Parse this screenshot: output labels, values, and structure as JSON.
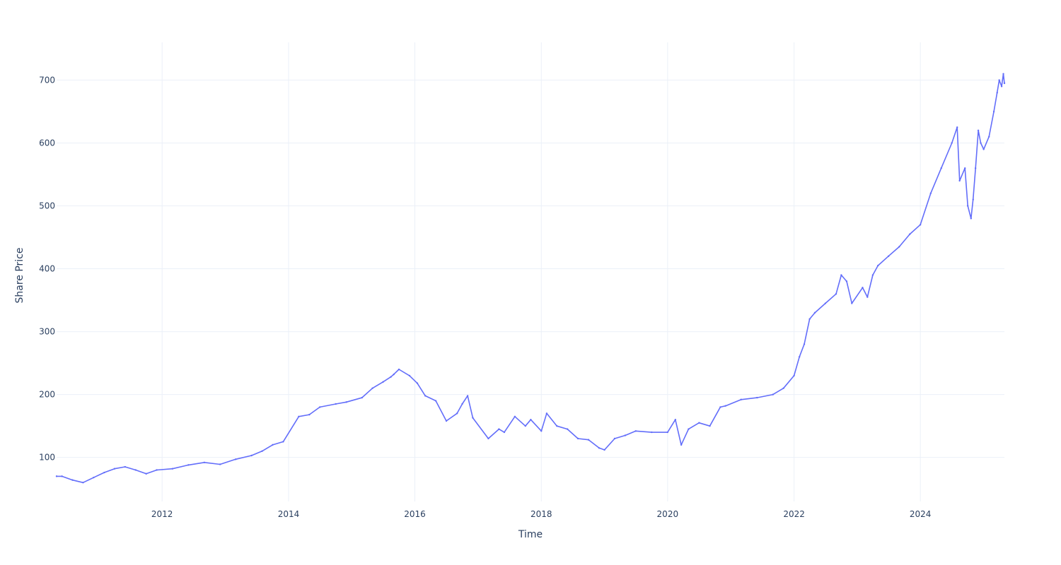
{
  "chart_data": {
    "type": "line",
    "title": "",
    "xlabel": "Time",
    "ylabel": "Share Price",
    "x_tick_labels": [
      "2012",
      "2014",
      "2016",
      "2018",
      "2020",
      "2022",
      "2024"
    ],
    "y_tick_labels": [
      "100",
      "200",
      "300",
      "400",
      "500",
      "600",
      "700"
    ],
    "y_ticks": [
      100,
      200,
      300,
      400,
      500,
      600,
      700
    ],
    "xlim": [
      "2010-05-01",
      "2025-05-01"
    ],
    "ylim": [
      30,
      760
    ],
    "grid": true,
    "legend": "none",
    "series": [
      {
        "color": "#636efa",
        "x": [
          "2010-05-01",
          "2010-06-01",
          "2010-08-01",
          "2010-10-01",
          "2010-12-01",
          "2011-02-01",
          "2011-04-01",
          "2011-06-01",
          "2011-08-01",
          "2011-10-01",
          "2011-12-01",
          "2012-03-01",
          "2012-06-01",
          "2012-09-01",
          "2012-12-01",
          "2013-03-01",
          "2013-06-01",
          "2013-08-01",
          "2013-10-01",
          "2013-12-01",
          "2014-03-01",
          "2014-05-01",
          "2014-07-01",
          "2014-10-01",
          "2014-12-01",
          "2015-03-01",
          "2015-05-01",
          "2015-07-01",
          "2015-08-15",
          "2015-09-01",
          "2015-10-01",
          "2015-12-01",
          "2016-01-15",
          "2016-03-01",
          "2016-05-01",
          "2016-07-01",
          "2016-09-01",
          "2016-10-01",
          "2016-11-01",
          "2016-12-01",
          "2017-03-01",
          "2017-05-01",
          "2017-06-01",
          "2017-08-01",
          "2017-10-01",
          "2017-11-01",
          "2018-01-01",
          "2018-02-01",
          "2018-04-01",
          "2018-06-01",
          "2018-08-01",
          "2018-10-01",
          "2018-12-01",
          "2019-01-01",
          "2019-03-01",
          "2019-05-01",
          "2019-07-01",
          "2019-10-01",
          "2020-01-01",
          "2020-02-15",
          "2020-03-20",
          "2020-05-01",
          "2020-07-01",
          "2020-09-01",
          "2020-11-01",
          "2020-12-01",
          "2021-03-01",
          "2021-06-01",
          "2021-09-01",
          "2021-11-01",
          "2022-01-01",
          "2022-02-01",
          "2022-03-01",
          "2022-04-01",
          "2022-05-01",
          "2022-07-01",
          "2022-09-01",
          "2022-10-01",
          "2022-11-01",
          "2022-12-01",
          "2023-02-01",
          "2023-03-01",
          "2023-04-01",
          "2023-05-01",
          "2023-07-01",
          "2023-09-01",
          "2023-11-01",
          "2024-01-01",
          "2024-03-01",
          "2024-05-01",
          "2024-07-01",
          "2024-08-01",
          "2024-08-15",
          "2024-09-15",
          "2024-10-01",
          "2024-10-20",
          "2024-11-01",
          "2024-11-15",
          "2024-12-01",
          "2024-12-15",
          "2025-01-01",
          "2025-02-01",
          "2025-03-01",
          "2025-03-20",
          "2025-04-01",
          "2025-04-15",
          "2025-04-25",
          "2025-05-01"
        ],
        "values": [
          70,
          70,
          64,
          60,
          68,
          76,
          82,
          85,
          80,
          74,
          80,
          82,
          88,
          92,
          89,
          97,
          103,
          110,
          120,
          125,
          165,
          168,
          180,
          185,
          188,
          195,
          210,
          220,
          228,
          232,
          240,
          230,
          218,
          198,
          190,
          158,
          170,
          185,
          198,
          163,
          130,
          145,
          140,
          165,
          150,
          160,
          142,
          170,
          150,
          145,
          130,
          128,
          115,
          112,
          130,
          135,
          142,
          140,
          140,
          160,
          120,
          145,
          155,
          150,
          180,
          182,
          192,
          195,
          200,
          210,
          230,
          260,
          280,
          320,
          330,
          345,
          360,
          390,
          380,
          345,
          370,
          355,
          390,
          405,
          420,
          435,
          455,
          470,
          520,
          560,
          600,
          625,
          540,
          560,
          500,
          480,
          510,
          560,
          620,
          600,
          590,
          610,
          650,
          680,
          700,
          690,
          710,
          695
        ]
      }
    ]
  }
}
